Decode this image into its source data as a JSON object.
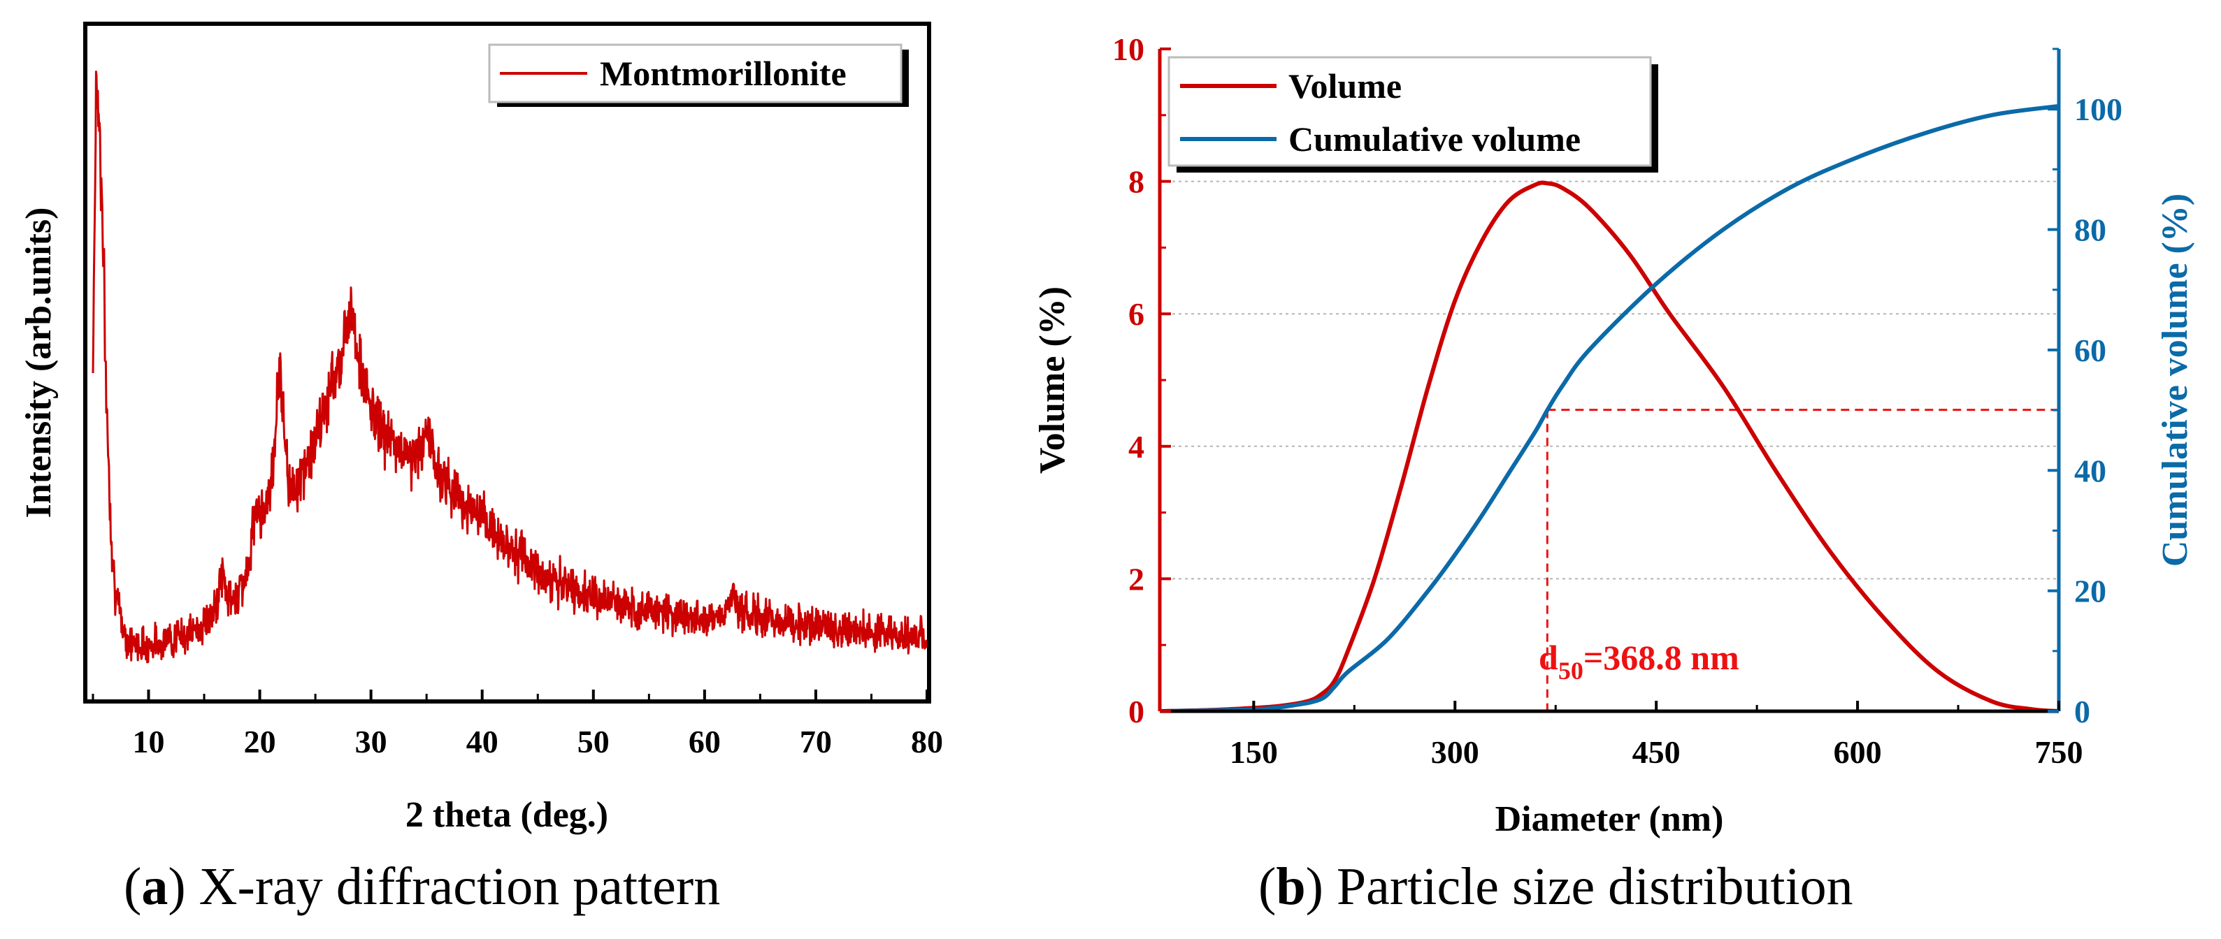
{
  "colors": {
    "red": "#cc0000",
    "blue": "#0b6aa8",
    "axis": "#000000",
    "grid": "#b5b5b5"
  },
  "chart_data": [
    {
      "id": "xrd",
      "type": "line",
      "title": "",
      "xlabel": "2 theta (deg.)",
      "ylabel": "Intensity (arb.units)",
      "xlim": [
        4.5,
        80
      ],
      "ylim": [
        0,
        1
      ],
      "xticks": [
        10,
        20,
        30,
        40,
        50,
        60,
        70,
        80
      ],
      "x_tick_labels": [
        "10",
        "20",
        "30",
        "40",
        "50",
        "60",
        "70",
        "80"
      ],
      "legend": {
        "position": "top-right",
        "entries": [
          "Montmorillonite"
        ]
      },
      "series": [
        {
          "name": "Montmorillonite",
          "color": "#cc0000",
          "noisy": true,
          "noise_amplitude": 0.018,
          "x": [
            5.0,
            5.3,
            5.6,
            5.9,
            6.2,
            6.6,
            7.0,
            7.5,
            8.0,
            9.0,
            10.0,
            12.0,
            14.0,
            15.0,
            16.0,
            16.6,
            17.0,
            17.5,
            18.0,
            19.0,
            19.7,
            20.2,
            21.0,
            21.5,
            21.8,
            22.1,
            22.6,
            23.5,
            25.0,
            26.5,
            27.5,
            28.2,
            28.7,
            29.2,
            30.0,
            31.0,
            32.5,
            34.0,
            35.3,
            35.8,
            36.5,
            37.5,
            39.0,
            41.0,
            43.0,
            45.0,
            47.0,
            50.0,
            53.0,
            56.0,
            60.0,
            62.0,
            62.6,
            63.2,
            65.0,
            70.0,
            75.0,
            80.0
          ],
          "y": [
            0.5,
            0.93,
            0.85,
            0.68,
            0.45,
            0.26,
            0.16,
            0.12,
            0.09,
            0.08,
            0.08,
            0.09,
            0.1,
            0.11,
            0.13,
            0.19,
            0.16,
            0.14,
            0.16,
            0.19,
            0.3,
            0.27,
            0.32,
            0.42,
            0.5,
            0.42,
            0.32,
            0.32,
            0.38,
            0.47,
            0.52,
            0.6,
            0.53,
            0.48,
            0.43,
            0.4,
            0.37,
            0.36,
            0.4,
            0.34,
            0.33,
            0.31,
            0.28,
            0.25,
            0.22,
            0.19,
            0.17,
            0.15,
            0.14,
            0.13,
            0.12,
            0.13,
            0.16,
            0.13,
            0.12,
            0.11,
            0.1,
            0.09
          ]
        }
      ]
    },
    {
      "id": "psd",
      "type": "line",
      "title": "",
      "xlabel": "Diameter (nm)",
      "ylabel": "Volume (%)",
      "ylabel_right": "Cumulative volume (%)",
      "xlim": [
        80,
        750
      ],
      "xticks": [
        150,
        300,
        450,
        600,
        750
      ],
      "x_tick_labels": [
        "150",
        "300",
        "450",
        "600",
        "750"
      ],
      "ylim": [
        0,
        10
      ],
      "yticks": [
        0,
        2,
        4,
        6,
        8,
        10
      ],
      "y_tick_labels": [
        "0",
        "2",
        "4",
        "6",
        "8",
        "10"
      ],
      "ylim_right": [
        0,
        110
      ],
      "yticks_right": [
        0,
        20,
        40,
        60,
        80,
        100
      ],
      "y_right_tick_labels": [
        "0",
        "20",
        "40",
        "60",
        "80",
        "100"
      ],
      "grid": "horizontal dotted",
      "legend": {
        "position": "top-left",
        "entries": [
          "Volume",
          "Cumulative volume"
        ]
      },
      "series": [
        {
          "name": "Volume",
          "axis": "left",
          "color": "#cc0000",
          "x": [
            80,
            120,
            150,
            170,
            190,
            200,
            210,
            220,
            240,
            260,
            280,
            300,
            320,
            340,
            360,
            368.8,
            380,
            400,
            430,
            460,
            500,
            540,
            580,
            620,
            660,
            700,
            730,
            750
          ],
          "y": [
            0.0,
            0.02,
            0.05,
            0.08,
            0.15,
            0.25,
            0.45,
            0.9,
            2.0,
            3.4,
            4.9,
            6.2,
            7.1,
            7.7,
            7.95,
            7.97,
            7.9,
            7.6,
            6.9,
            6.0,
            4.9,
            3.6,
            2.4,
            1.4,
            0.6,
            0.15,
            0.03,
            0.0
          ]
        },
        {
          "name": "Cumulative volume",
          "axis": "right",
          "color": "#0b6aa8",
          "x": [
            80,
            150,
            180,
            200,
            210,
            220,
            250,
            280,
            300,
            320,
            340,
            360,
            368.8,
            380,
            400,
            450,
            500,
            550,
            600,
            650,
            700,
            750
          ],
          "y": [
            0,
            0.3,
            1.0,
            2.0,
            4.0,
            6.5,
            12.0,
            20.0,
            26.0,
            32.5,
            39.5,
            46.5,
            50.0,
            54.0,
            60.0,
            71.0,
            80.0,
            87.0,
            92.0,
            96.0,
            99.0,
            100.5
          ]
        }
      ],
      "annotations": {
        "d50_value": 368.8,
        "d50_left_axis_value": 4.55,
        "d50_cumulative_percent": 50,
        "d50_label_prefix": "d",
        "d50_label_subscript": "50",
        "d50_label_text": "=368.8 nm"
      }
    }
  ],
  "captions": {
    "a": {
      "letter": "a",
      "text": " X-ray diffraction pattern"
    },
    "b": {
      "letter": "b",
      "text": " Particle size distribution"
    }
  }
}
